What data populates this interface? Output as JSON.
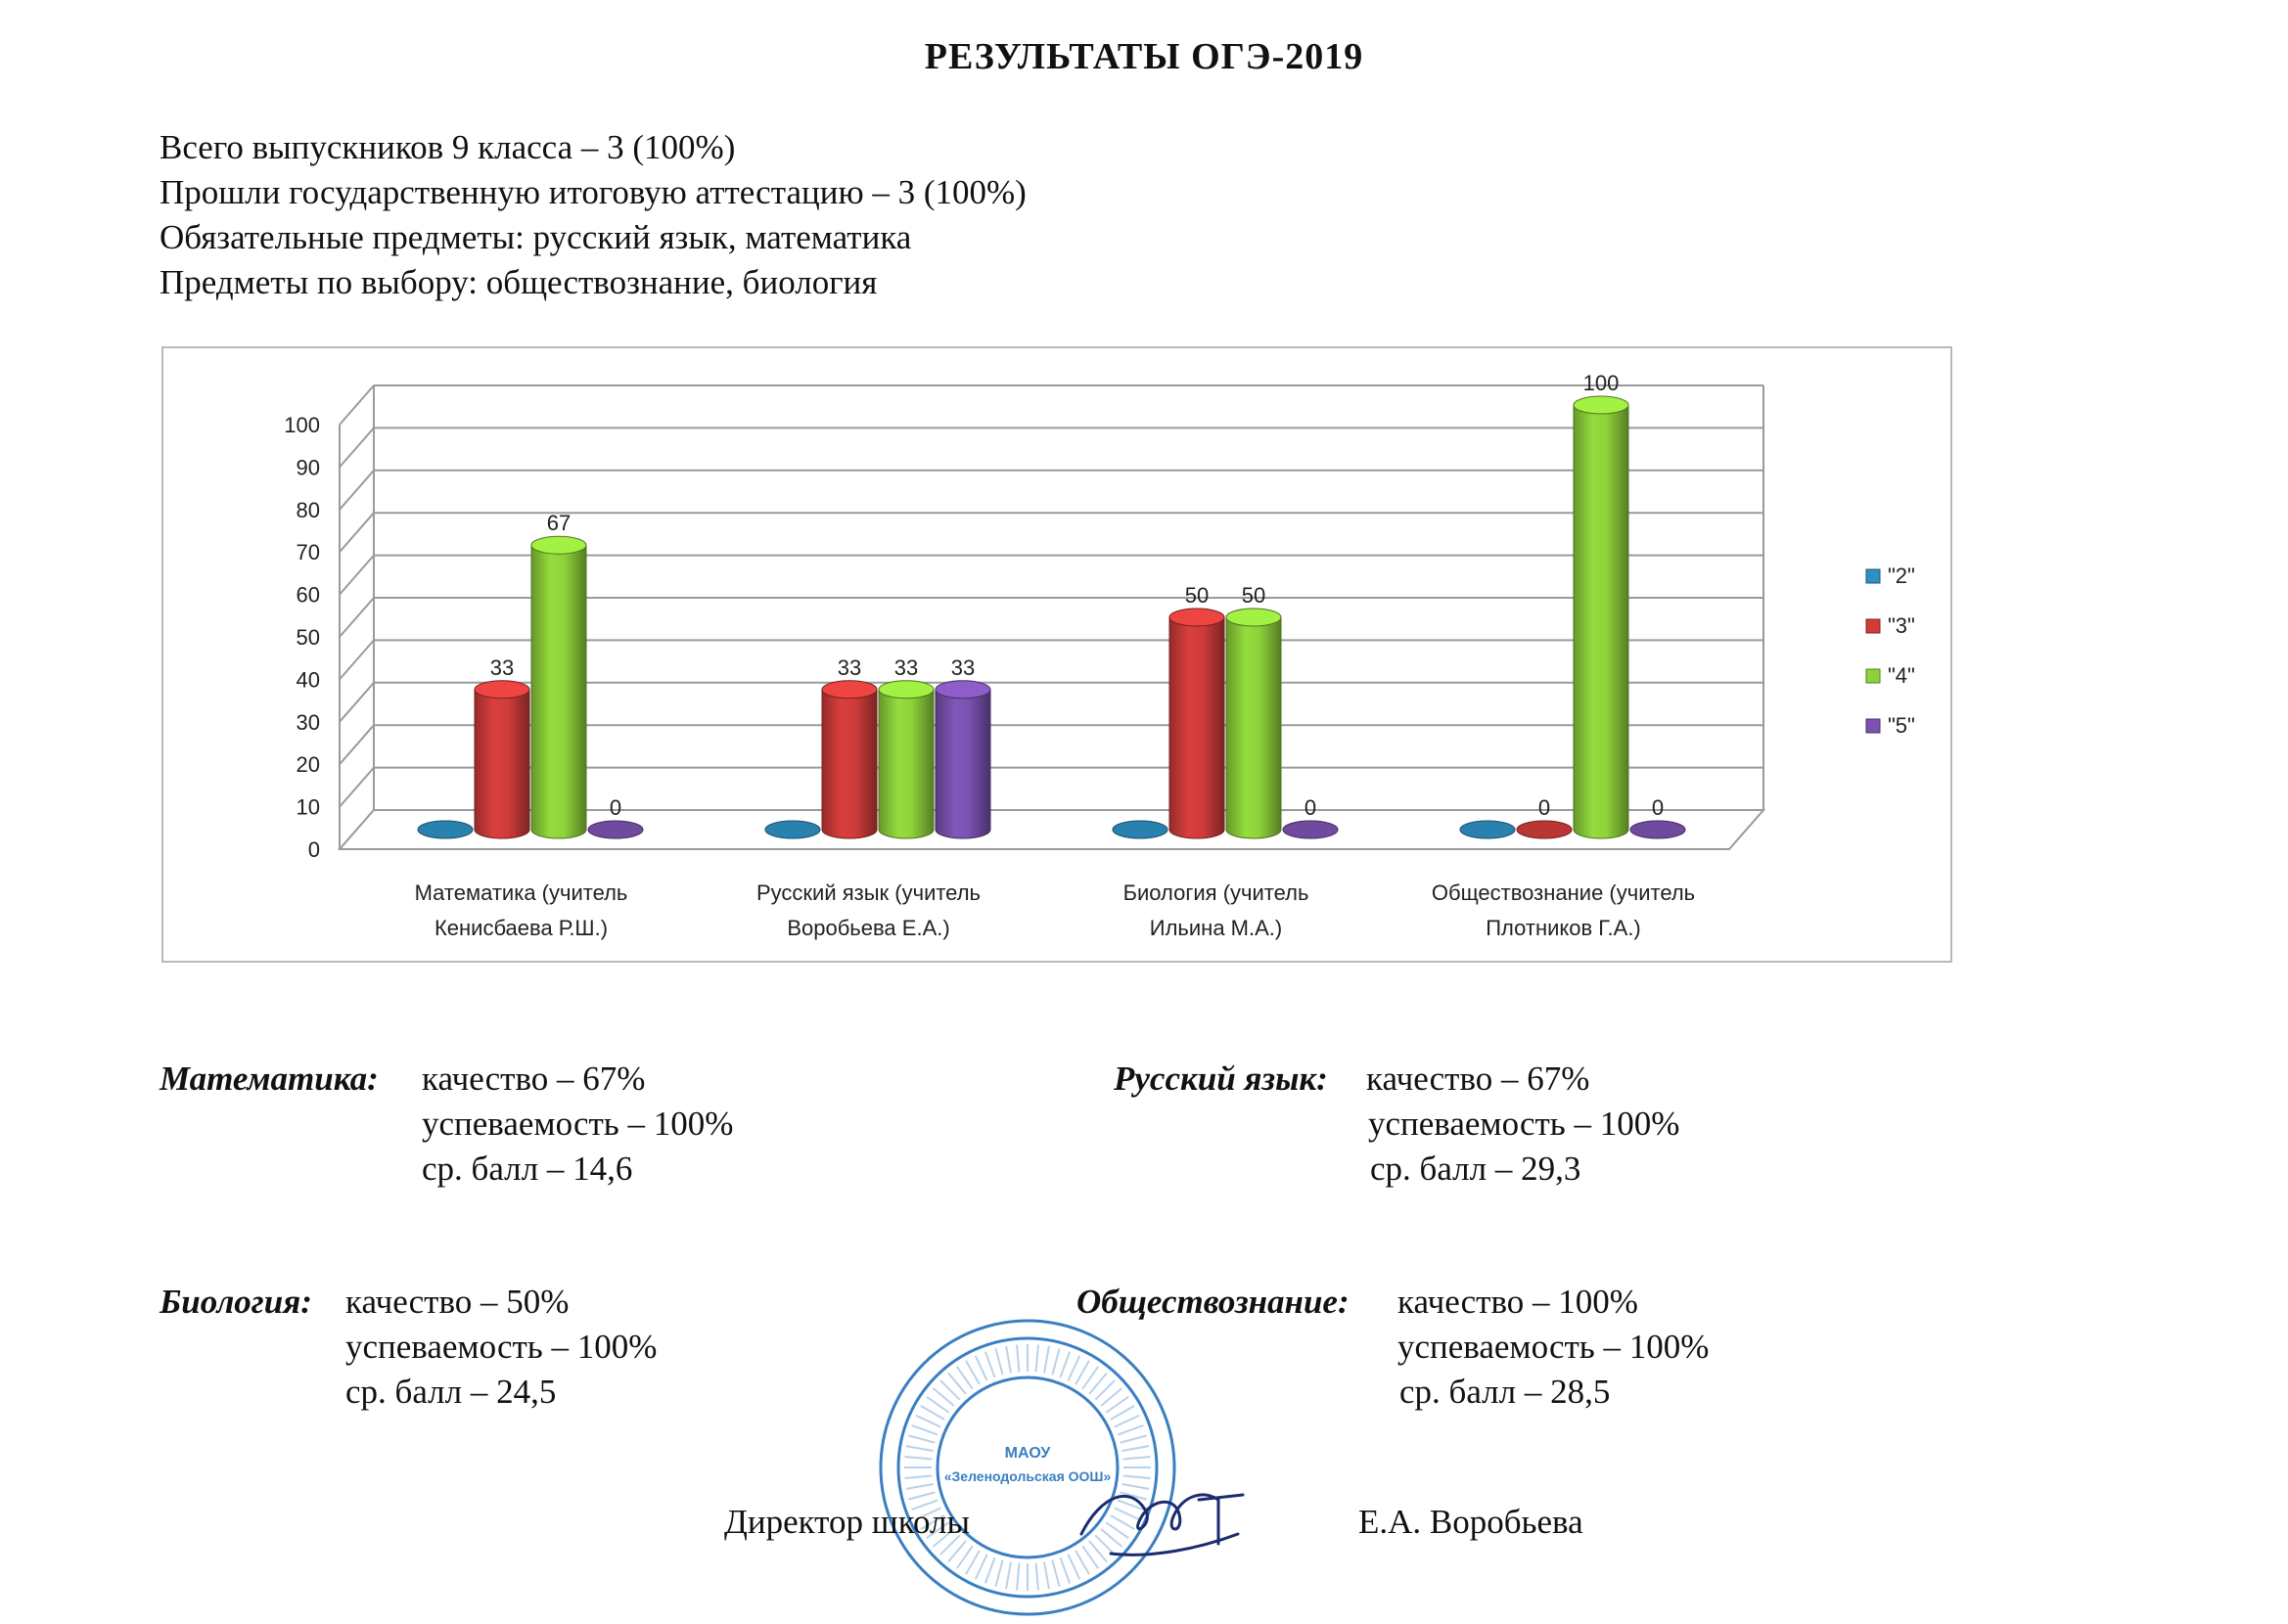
{
  "document": {
    "title": "РЕЗУЛЬТАТЫ ОГЭ-2019",
    "intro_lines": [
      "Всего выпускников 9 класса – 3 (100%)",
      "Прошли государственную итоговую аттестацию – 3 (100%)",
      "Обязательные предметы: русский язык, математика",
      "Предметы по выбору: обществознание, биология"
    ]
  },
  "chart_data": {
    "type": "bar",
    "title": "",
    "xlabel": "",
    "ylabel": "",
    "ylim": [
      0,
      100
    ],
    "yticks": [
      "0",
      "10",
      "20",
      "30",
      "40",
      "50",
      "60",
      "70",
      "80",
      "90",
      "100"
    ],
    "categories": [
      [
        "Математика (учитель",
        "Кенисбаева Р.Ш.)"
      ],
      [
        "Русский язык (учитель",
        "Воробьева Е.А.)"
      ],
      [
        "Биология (учитель",
        "Ильина М.А.)"
      ],
      [
        "Обществознание (учитель",
        "Плотников Г.А.)"
      ]
    ],
    "series": [
      {
        "name": "\"2\"",
        "color": "#2e8fc4",
        "values": [
          0,
          0,
          0,
          0
        ],
        "labels": [
          "",
          "",
          "",
          ""
        ]
      },
      {
        "name": "\"3\"",
        "color": "#cf3c3a",
        "values": [
          33,
          33,
          50,
          0
        ],
        "labels": [
          "33",
          "33",
          "50",
          "0"
        ]
      },
      {
        "name": "\"4\"",
        "color": "#8ed23a",
        "values": [
          67,
          33,
          50,
          100
        ],
        "labels": [
          "67",
          "33",
          "50",
          "100"
        ]
      },
      {
        "name": "\"5\"",
        "color": "#7b52b0",
        "values": [
          0,
          33,
          0,
          0
        ],
        "labels": [
          "0",
          "33",
          "0",
          "0"
        ]
      }
    ],
    "legend_position": "right",
    "grid": true
  },
  "subjects": [
    {
      "name": "Математика:",
      "lines": [
        "качество – 67%",
        "успеваемость – 100%",
        "ср. балл – 14,6"
      ]
    },
    {
      "name": "Русский язык:",
      "lines": [
        "качество – 67%",
        "успеваемость – 100%",
        "ср. балл – 29,3"
      ]
    },
    {
      "name": "Биология:",
      "lines": [
        "качество – 50%",
        "успеваемость – 100%",
        "ср. балл – 24,5"
      ]
    },
    {
      "name": "Обществознание:",
      "lines": [
        "качество – 100%",
        "успеваемость – 100%",
        "ср. балл – 28,5"
      ]
    }
  ],
  "signature": {
    "position": "Директор школы",
    "name": "Е.А. Воробьева"
  },
  "stamp": {
    "center_text": [
      "МАОУ",
      "«Зеленодольская ООШ»"
    ],
    "color": "#3a7fc2"
  },
  "colors": {
    "grid": "#9a9a9a",
    "axis_text": "#222222"
  }
}
